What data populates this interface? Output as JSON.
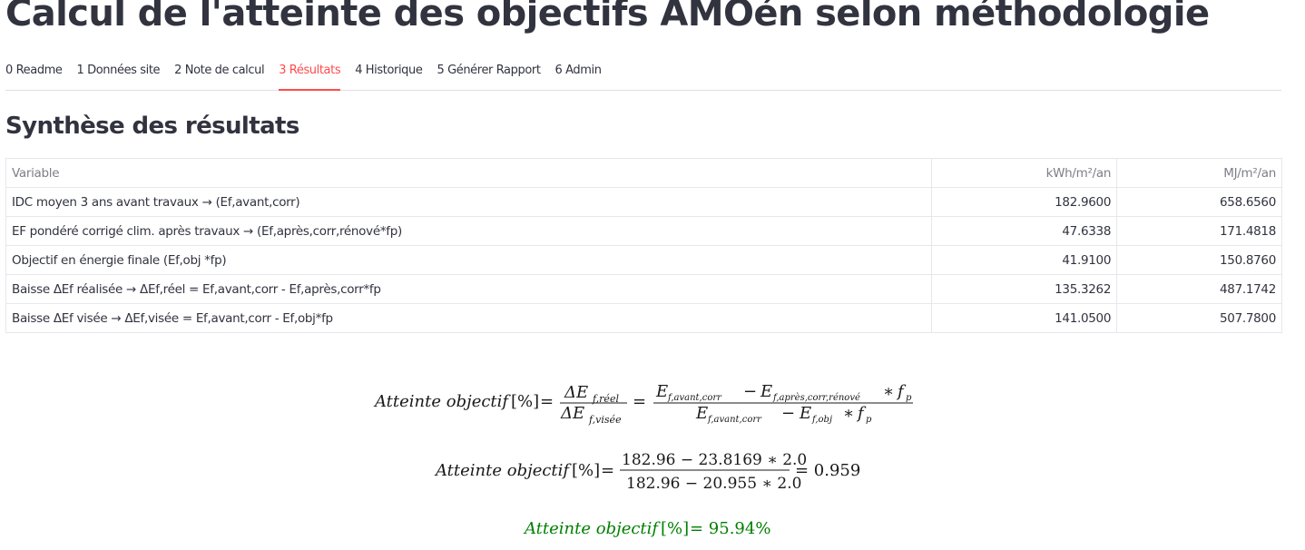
{
  "page": {
    "title": "Calcul de l'atteinte des objectifs AMOén selon méthodologie"
  },
  "tabs": [
    {
      "label": "0 Readme",
      "active": false
    },
    {
      "label": "1 Données site",
      "active": false
    },
    {
      "label": "2 Note de calcul",
      "active": false
    },
    {
      "label": "3 Résultats",
      "active": true
    },
    {
      "label": "4 Historique",
      "active": false
    },
    {
      "label": "5 Générer Rapport",
      "active": false
    },
    {
      "label": "6 Admin",
      "active": false
    }
  ],
  "section": {
    "title": "Synthèse des résultats"
  },
  "table": {
    "headers": [
      "Variable",
      "kWh/m²/an",
      "MJ/m²/an"
    ],
    "rows": [
      [
        "IDC moyen 3 ans avant travaux → (Ef,avant,corr)",
        "182.9600",
        "658.6560"
      ],
      [
        "EF pondéré corrigé clim. après travaux → (Ef,après,corr,rénové*fp)",
        "47.6338",
        "171.4818"
      ],
      [
        "Objectif en énergie finale (Ef,obj *fp)",
        "41.9100",
        "150.8760"
      ],
      [
        "Baisse ΔEf réalisée → ΔEf,réel = Ef,avant,corr - Ef,après,corr*fp",
        "135.3262",
        "487.1742"
      ],
      [
        "Baisse ΔEf visée → ΔEf,visée = Ef,avant,corr - Ef,obj*fp",
        "141.0500",
        "507.7800"
      ]
    ]
  },
  "formulas": {
    "lhs": "Atteinte objectif",
    "percent": "[%]",
    "f1": {
      "num_delta": "ΔE",
      "num_sub": "f,réel",
      "den_delta": "ΔE",
      "den_sub": "f,visée",
      "num2_a": "E",
      "num2_a_sub": "f,avant,corr",
      "num2_b": "E",
      "num2_b_sub": "f,après,corr,rénové",
      "fp": "f",
      "fp_sub": "p",
      "den2_a": "E",
      "den2_a_sub": "f,avant,corr",
      "den2_b": "E",
      "den2_b_sub": "f,obj"
    },
    "f2": {
      "numerator": "182.96 − 23.8169 ∗ 2.0",
      "denominator": "182.96 − 20.955 ∗ 2.0",
      "result": "= 0.959"
    },
    "f3": {
      "result": "= 95.94%",
      "color": "#008000"
    }
  }
}
